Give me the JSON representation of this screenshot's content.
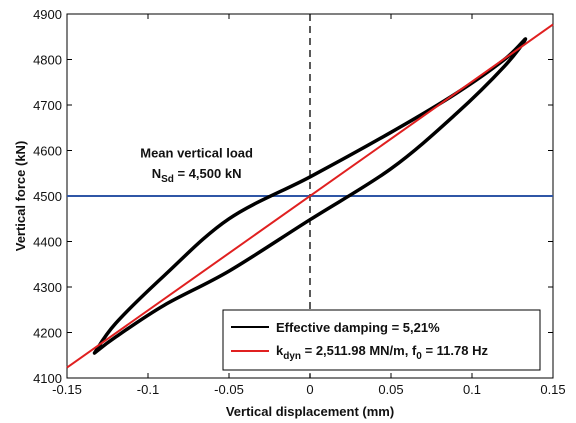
{
  "chart_data": {
    "type": "line",
    "xlabel": "Vertical displacement (mm)",
    "ylabel": "Vertical force (kN)",
    "xlim": [
      -0.15,
      0.15
    ],
    "ylim": [
      4100,
      4900
    ],
    "xticks": [
      -0.15,
      -0.1,
      -0.05,
      0,
      0.05,
      0.1,
      0.15
    ],
    "xtick_labels": [
      "-0.15",
      "-0.1",
      "-0.05",
      "0",
      "0.05",
      "0.1",
      "0.15"
    ],
    "yticks": [
      4100,
      4200,
      4300,
      4400,
      4500,
      4600,
      4700,
      4800,
      4900
    ],
    "ytick_labels": [
      "4100",
      "4200",
      "4300",
      "4400",
      "4500",
      "4600",
      "4700",
      "4800",
      "4900"
    ],
    "grid": false,
    "legend_position": "bottom-right",
    "series": [
      {
        "name": "Effective damping = 5,21%",
        "kind": "hysteresis-loop",
        "color": "#000000",
        "x": [
          -0.133,
          -0.12,
          -0.09,
          -0.05,
          0.0,
          0.05,
          0.09,
          0.12,
          0.133,
          0.12,
          0.09,
          0.05,
          0.0,
          -0.05,
          -0.09,
          -0.12,
          -0.133
        ],
        "y": [
          4155,
          4220,
          4325,
          4450,
          4542,
          4640,
          4725,
          4800,
          4845,
          4785,
          4680,
          4560,
          4448,
          4335,
          4260,
          4190,
          4155
        ]
      },
      {
        "name_parts": [
          "k",
          "dyn",
          " = 2,511.98 MN/m, f",
          "0",
          " = 11.78 Hz"
        ],
        "kind": "linear-fit",
        "color": "#e02020",
        "x": [
          -0.15,
          0.15
        ],
        "y": [
          4123,
          4877
        ]
      },
      {
        "kind": "mean-load",
        "color": "#2f56a6",
        "y_value": 4500
      },
      {
        "kind": "zero-reference",
        "color": "#000000",
        "x_value": 0
      }
    ],
    "annotations": [
      {
        "text": "Mean vertical load",
        "x": -0.07,
        "y": 4585
      },
      {
        "text_parts": [
          "N",
          "Sd",
          " = 4,500 kN"
        ],
        "x": -0.07,
        "y": 4540
      }
    ]
  }
}
